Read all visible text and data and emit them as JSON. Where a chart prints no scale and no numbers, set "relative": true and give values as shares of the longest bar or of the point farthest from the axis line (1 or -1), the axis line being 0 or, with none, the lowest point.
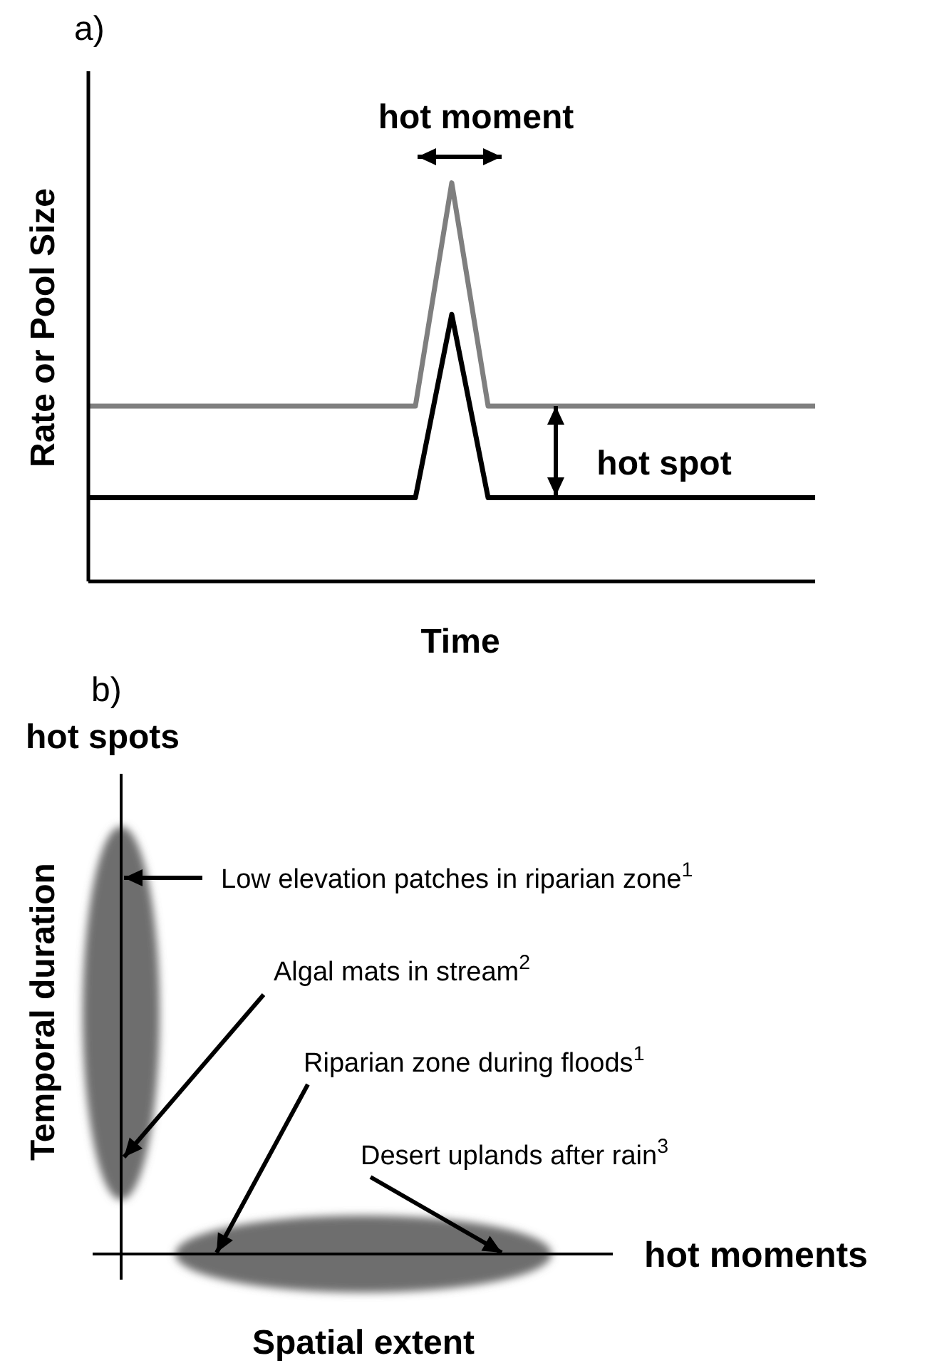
{
  "chart_data": [
    {
      "type": "line",
      "title": "a)",
      "xlabel": "Time",
      "ylabel": "Rate or Pool Size",
      "relative": true,
      "legend": false,
      "grid": false,
      "categories": [
        null,
        null,
        null,
        null,
        null,
        null,
        null,
        null,
        null,
        null,
        null,
        null,
        null,
        null,
        null,
        null,
        null,
        null,
        null,
        null,
        null
      ],
      "series": [
        {
          "color": "#7f7f7f",
          "values": [
            0.44,
            0.44,
            0.44,
            0.44,
            0.44,
            0.44,
            0.44,
            0.44,
            0.44,
            0.44,
            1,
            0.44,
            0.44,
            0.44,
            0.44,
            0.44,
            0.44,
            0.44,
            0.44,
            0.44,
            0.44
          ]
        },
        {
          "color": "#000000",
          "values": [
            0.21,
            0.21,
            0.21,
            0.21,
            0.21,
            0.21,
            0.21,
            0.21,
            0.21,
            0.21,
            0.67,
            0.21,
            0.21,
            0.21,
            0.21,
            0.21,
            0.21,
            0.21,
            0.21,
            0.21,
            0.21
          ]
        }
      ],
      "annotations": [
        "hot moment",
        "hot spot"
      ]
    },
    {
      "type": "other",
      "title": "b)",
      "xlabel": "Spatial extent",
      "ylabel": "Temporal duration",
      "annotations": [
        "hot spots",
        "hot moments",
        "Low elevation patches in riparian zone$^{1}$",
        "Algal mats in stream$^{2}$",
        "Riparian zone during floods$^{1}$",
        "Desert uplands after rain$^{3}$"
      ]
    }
  ]
}
